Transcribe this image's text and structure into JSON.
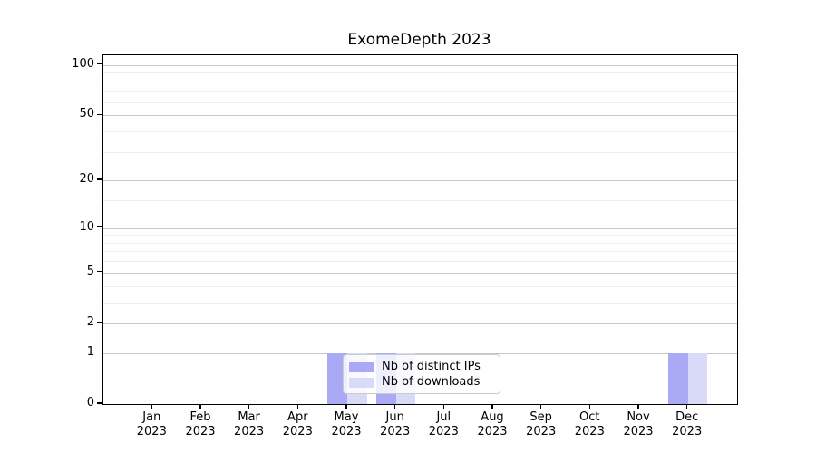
{
  "chart_data": {
    "type": "bar",
    "title": "ExomeDepth 2023",
    "categories": [
      "Jan",
      "Feb",
      "Mar",
      "Apr",
      "May",
      "Jun",
      "Jul",
      "Aug",
      "Sep",
      "Oct",
      "Nov",
      "Dec"
    ],
    "year_label": "2023",
    "series": [
      {
        "name": "Nb of distinct IPs",
        "color": "#a9a9f5",
        "values": [
          0,
          0,
          0,
          0,
          1,
          1,
          0,
          0,
          0,
          0,
          0,
          1
        ]
      },
      {
        "name": "Nb of downloads",
        "color": "#d9d9f8",
        "values": [
          0,
          0,
          0,
          0,
          1,
          1,
          0,
          0,
          0,
          0,
          0,
          1
        ]
      }
    ],
    "yscale": "log1p",
    "yticks": [
      0,
      1,
      2,
      5,
      10,
      20,
      50,
      100
    ],
    "yticks_minor": [
      3,
      4,
      6,
      7,
      8,
      9,
      15,
      30,
      40,
      60,
      70,
      80,
      90
    ],
    "ylim": [
      0,
      113
    ],
    "grid": true,
    "legend_position": "inside-bottom-center",
    "colors": {
      "grid_major": "#c6c6c6",
      "grid_minor": "#ececec",
      "spine": "#000000",
      "legend_border": "#cccccc"
    }
  }
}
